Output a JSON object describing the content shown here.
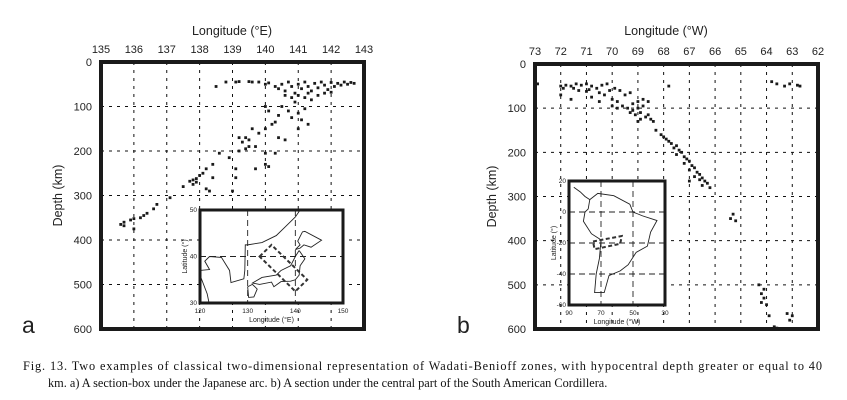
{
  "caption": {
    "line1": "Fig. 13. Two examples of classical two-dimensional representation of Wadati-Benioff zones, with hypocentral depth greater or equal to 40",
    "line2": "km. a) A section-box under the Japanese arc. b) A section under the central part of the South American Cordillera."
  },
  "chart_data": [
    {
      "panel": "a",
      "type": "scatter",
      "xlabel": "Longitude (°E)",
      "ylabel": "Depth (km)",
      "xlim": [
        135,
        143
      ],
      "ylim": [
        0,
        600
      ],
      "y_inverted": true,
      "x_axis_position": "top",
      "grid": "dotted",
      "xticks": [
        "135",
        "136",
        "137",
        "138",
        "139",
        "140",
        "141",
        "142",
        "143"
      ],
      "yticks": [
        "0",
        "100",
        "200",
        "300",
        "400",
        "500",
        "600"
      ],
      "points": [
        [
          139.1,
          45
        ],
        [
          139.2,
          44
        ],
        [
          138.5,
          55
        ],
        [
          138.8,
          45
        ],
        [
          139.5,
          44
        ],
        [
          139.6,
          45
        ],
        [
          139.8,
          45
        ],
        [
          140.0,
          50
        ],
        [
          140.1,
          47
        ],
        [
          140.3,
          55
        ],
        [
          140.4,
          60
        ],
        [
          140.5,
          50
        ],
        [
          140.6,
          65
        ],
        [
          140.7,
          45
        ],
        [
          140.8,
          55
        ],
        [
          140.9,
          70
        ],
        [
          141.0,
          50
        ],
        [
          141.1,
          60
        ],
        [
          141.2,
          45
        ],
        [
          141.3,
          55
        ],
        [
          141.4,
          65
        ],
        [
          141.5,
          48
        ],
        [
          141.6,
          58
        ],
        [
          141.7,
          45
        ],
        [
          141.8,
          52
        ],
        [
          141.9,
          62
        ],
        [
          142.0,
          46
        ],
        [
          142.1,
          55
        ],
        [
          142.2,
          48
        ],
        [
          142.3,
          52
        ],
        [
          142.4,
          45
        ],
        [
          142.5,
          50
        ],
        [
          142.6,
          46
        ],
        [
          142.7,
          48
        ],
        [
          141.0,
          75
        ],
        [
          141.2,
          80
        ],
        [
          141.4,
          85
        ],
        [
          140.8,
          80
        ],
        [
          141.6,
          75
        ],
        [
          141.8,
          70
        ],
        [
          142.0,
          68
        ],
        [
          141.3,
          70
        ],
        [
          140.6,
          75
        ],
        [
          140.9,
          90
        ],
        [
          140.5,
          100
        ],
        [
          140.7,
          110
        ],
        [
          140.4,
          120
        ],
        [
          140.8,
          125
        ],
        [
          141.0,
          115
        ],
        [
          141.2,
          105
        ],
        [
          141.1,
          130
        ],
        [
          141.3,
          140
        ],
        [
          140.3,
          135
        ],
        [
          140.2,
          140
        ],
        [
          140.0,
          150
        ],
        [
          139.8,
          160
        ],
        [
          139.6,
          150
        ],
        [
          140.1,
          110
        ],
        [
          140.0,
          100
        ],
        [
          141.0,
          150
        ],
        [
          139.4,
          170
        ],
        [
          139.5,
          175
        ],
        [
          139.2,
          170
        ],
        [
          139.3,
          180
        ],
        [
          139.5,
          190
        ],
        [
          139.7,
          190
        ],
        [
          139.4,
          195
        ],
        [
          139.2,
          200
        ],
        [
          140.0,
          205
        ],
        [
          140.3,
          205
        ],
        [
          140.6,
          175
        ],
        [
          140.4,
          170
        ],
        [
          138.6,
          205
        ],
        [
          138.9,
          215
        ],
        [
          138.4,
          230
        ],
        [
          138.2,
          240
        ],
        [
          138.1,
          250
        ],
        [
          138.0,
          255
        ],
        [
          138.4,
          260
        ],
        [
          137.8,
          265
        ],
        [
          137.9,
          270
        ],
        [
          137.7,
          268
        ],
        [
          137.8,
          275
        ],
        [
          137.9,
          262
        ],
        [
          138.2,
          285
        ],
        [
          138.3,
          290
        ],
        [
          137.5,
          280
        ],
        [
          139.0,
          290
        ],
        [
          139.1,
          240
        ],
        [
          139.1,
          260
        ],
        [
          139.7,
          240
        ],
        [
          140.0,
          230
        ],
        [
          140.1,
          235
        ],
        [
          137.1,
          305
        ],
        [
          136.7,
          320
        ],
        [
          136.6,
          330
        ],
        [
          136.4,
          340
        ],
        [
          136.3,
          345
        ],
        [
          136.2,
          350
        ],
        [
          136.0,
          352
        ],
        [
          135.9,
          355
        ],
        [
          135.7,
          368
        ],
        [
          135.6,
          365
        ],
        [
          135.7,
          360
        ],
        [
          136.0,
          375
        ]
      ],
      "inset": {
        "xlabel": "Longitude (°E)",
        "ylabel": "Latitude (°)",
        "xlim": [
          120,
          150
        ],
        "ylim": [
          30,
          50
        ],
        "xticks": [
          "120",
          "130",
          "140",
          "150"
        ],
        "yticks": [
          "30",
          "40",
          "50"
        ],
        "section_box": [
          [
            132.5,
            40
          ],
          [
            135,
            42.5
          ],
          [
            142.5,
            35
          ],
          [
            140,
            32.5
          ]
        ]
      }
    },
    {
      "panel": "b",
      "type": "scatter",
      "xlabel": "Longitude (°W)",
      "ylabel": "Depth (km)",
      "xlim": [
        73,
        62
      ],
      "ylim": [
        0,
        600
      ],
      "y_inverted": true,
      "x_axis_position": "top",
      "grid": "dotted",
      "xticks": [
        "73",
        "72",
        "71",
        "70",
        "69",
        "68",
        "67",
        "66",
        "65",
        "64",
        "63",
        "62"
      ],
      "yticks": [
        "0",
        "100",
        "200",
        "300",
        "400",
        "500",
        "600"
      ],
      "points": [
        [
          72.9,
          45
        ],
        [
          72.0,
          50
        ],
        [
          71.9,
          55
        ],
        [
          72.0,
          70
        ],
        [
          71.8,
          48
        ],
        [
          71.6,
          50
        ],
        [
          71.4,
          45
        ],
        [
          71.2,
          48
        ],
        [
          71.0,
          45
        ],
        [
          70.8,
          50
        ],
        [
          70.6,
          55
        ],
        [
          70.4,
          48
        ],
        [
          70.2,
          45
        ],
        [
          71.5,
          55
        ],
        [
          71.3,
          60
        ],
        [
          71.0,
          62
        ],
        [
          70.9,
          58
        ],
        [
          70.5,
          65
        ],
        [
          70.3,
          70
        ],
        [
          70.1,
          60
        ],
        [
          69.9,
          55
        ],
        [
          69.7,
          60
        ],
        [
          69.5,
          70
        ],
        [
          69.3,
          65
        ],
        [
          70.0,
          80
        ],
        [
          69.8,
          85
        ],
        [
          69.6,
          95
        ],
        [
          69.4,
          100
        ],
        [
          69.2,
          105
        ],
        [
          69.0,
          100
        ],
        [
          68.8,
          95
        ],
        [
          68.9,
          110
        ],
        [
          69.1,
          115
        ],
        [
          69.3,
          110
        ],
        [
          68.7,
          120
        ],
        [
          68.9,
          125
        ],
        [
          69.0,
          130
        ],
        [
          68.6,
          115
        ],
        [
          68.5,
          125
        ],
        [
          68.4,
          130
        ],
        [
          69.2,
          90
        ],
        [
          69.0,
          85
        ],
        [
          68.8,
          80
        ],
        [
          68.6,
          85
        ],
        [
          71.6,
          80
        ],
        [
          70.8,
          75
        ],
        [
          70.5,
          85
        ],
        [
          70.0,
          95
        ],
        [
          69.8,
          100
        ],
        [
          68.3,
          150
        ],
        [
          68.1,
          160
        ],
        [
          68.0,
          165
        ],
        [
          67.9,
          170
        ],
        [
          67.8,
          175
        ],
        [
          67.7,
          180
        ],
        [
          67.6,
          190
        ],
        [
          67.5,
          185
        ],
        [
          67.4,
          195
        ],
        [
          67.3,
          200
        ],
        [
          67.5,
          205
        ],
        [
          67.2,
          210
        ],
        [
          67.1,
          215
        ],
        [
          67.0,
          220
        ],
        [
          67.2,
          225
        ],
        [
          66.9,
          230
        ],
        [
          66.8,
          235
        ],
        [
          67.0,
          240
        ],
        [
          66.7,
          245
        ],
        [
          66.6,
          250
        ],
        [
          66.8,
          255
        ],
        [
          66.5,
          258
        ],
        [
          66.6,
          262
        ],
        [
          66.4,
          265
        ],
        [
          66.3,
          270
        ],
        [
          66.5,
          275
        ],
        [
          67.0,
          265
        ],
        [
          66.2,
          280
        ],
        [
          67.8,
          50
        ],
        [
          63.8,
          40
        ],
        [
          63.6,
          45
        ],
        [
          63.1,
          45
        ],
        [
          63.3,
          50
        ],
        [
          62.8,
          48
        ],
        [
          62.7,
          50
        ],
        [
          65.3,
          340
        ],
        [
          65.4,
          350
        ],
        [
          65.2,
          355
        ],
        [
          64.2,
          520
        ],
        [
          64.1,
          530
        ],
        [
          64.0,
          545
        ],
        [
          64.2,
          540
        ],
        [
          63.9,
          570
        ],
        [
          63.2,
          565
        ],
        [
          63.0,
          570
        ],
        [
          63.1,
          580
        ],
        [
          63.7,
          595
        ],
        [
          63.6,
          598
        ],
        [
          64.3,
          500
        ],
        [
          64.1,
          510
        ]
      ],
      "inset": {
        "xlabel": "Longitude (°W)",
        "ylabel": "Latitude (°)",
        "xlim": [
          90,
          30
        ],
        "ylim": [
          -60,
          20
        ],
        "xticks": [
          "90",
          "70",
          "50",
          "30"
        ],
        "yticks": [
          "20",
          "0",
          "-20",
          "-40",
          "-60"
        ],
        "section_box": [
          [
            75,
            -19
          ],
          [
            57,
            -15.5
          ],
          [
            58,
            -20.5
          ],
          [
            74,
            -24
          ]
        ]
      }
    }
  ]
}
